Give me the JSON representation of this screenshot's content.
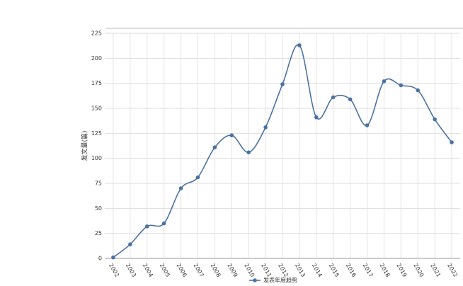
{
  "chart_data": {
    "type": "line",
    "y_label": "发文量(篇)",
    "categories": [
      "2002",
      "2003",
      "2004",
      "2005",
      "2006",
      "2007",
      "2008",
      "2009",
      "2010",
      "2011",
      "2012",
      "2013",
      "2014",
      "2015",
      "2016",
      "2017",
      "2018",
      "2019",
      "2020",
      "2021",
      "2022"
    ],
    "series": [
      {
        "name": "发表年度趋势",
        "color": "#4b72a0",
        "values": [
          1,
          14,
          32,
          35,
          70,
          81,
          111,
          123,
          106,
          131,
          174,
          213,
          141,
          161,
          159,
          133,
          177,
          173,
          168,
          139,
          116
        ]
      }
    ],
    "ylim": [
      0,
      225
    ],
    "yticks": [
      0,
      25,
      50,
      75,
      100,
      125,
      150,
      175,
      200,
      225
    ],
    "grid": true,
    "legend": "bottom"
  }
}
